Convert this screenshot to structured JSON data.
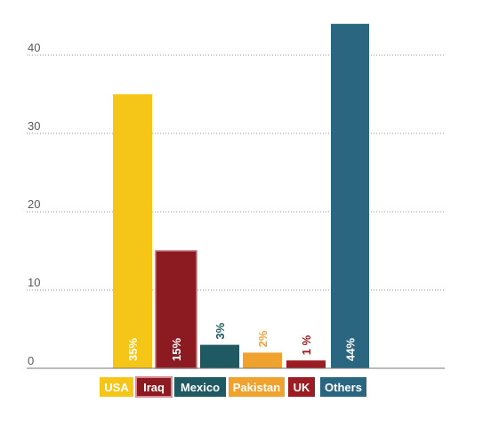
{
  "chart_data": {
    "type": "bar",
    "categories": [
      "USA",
      "Iraq",
      "Mexico",
      "Pakistan",
      "UK",
      "Others"
    ],
    "values": [
      35,
      15,
      3,
      2,
      1,
      44
    ],
    "value_labels": [
      "35%",
      "15%",
      "3%",
      "2%",
      "1 %",
      "44%"
    ],
    "colors": [
      "#f5c518",
      "#8b1a21",
      "#1f5a63",
      "#f0a22e",
      "#9b1c22",
      "#2b6680"
    ],
    "label_colors": [
      "#ffffff",
      "#ffffff",
      "#1f5a63",
      "#f0a22e",
      "#9b1c22",
      "#ffffff"
    ],
    "label_inside": [
      true,
      true,
      false,
      false,
      false,
      true
    ],
    "yticks": [
      0,
      10,
      20,
      30,
      40
    ],
    "ytick_labels": [
      "0",
      "10",
      "20",
      "30",
      "40"
    ],
    "ylim": [
      0,
      45
    ],
    "grid": true,
    "title": "",
    "xlabel": "",
    "ylabel": "",
    "legend": {
      "items": [
        "USA",
        "Iraq",
        "Mexico",
        "Pakistan",
        "UK",
        "Others"
      ],
      "placement": "bottom"
    }
  }
}
